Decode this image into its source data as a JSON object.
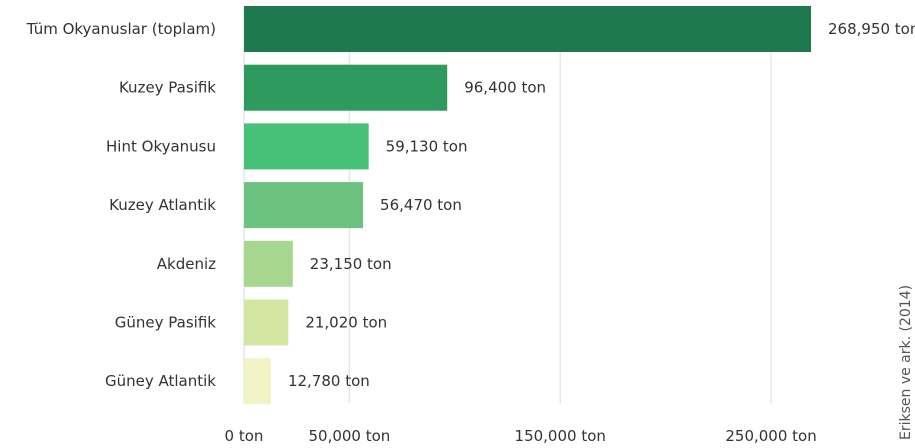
{
  "chart_data": {
    "type": "bar",
    "orientation": "horizontal",
    "categories": [
      "Tüm Okyanuslar (toplam)",
      "Kuzey Pasifik",
      "Hint Okyanusu",
      "Kuzey Atlantik",
      "Akdeniz",
      "Güney Pasifik",
      "Güney Atlantik"
    ],
    "values": [
      268950,
      96400,
      59130,
      56470,
      23150,
      21020,
      12780
    ],
    "value_labels": [
      "268,950 ton",
      "96,400 ton",
      "59,130 ton",
      "56,470 ton",
      "23,150 ton",
      "21,020 ton",
      "12,780 ton"
    ],
    "bar_colors": [
      "#1e7a4e",
      "#2f9a5e",
      "#45c178",
      "#6cc27f",
      "#a7d68f",
      "#d3e7a3",
      "#f3f3c8"
    ],
    "x_ticks": [
      {
        "value": 0,
        "label": "0 ton"
      },
      {
        "value": 50000,
        "label": "50,000 ton"
      },
      {
        "value": 150000,
        "label": "150,000 ton"
      },
      {
        "value": 250000,
        "label": "250,000 ton"
      }
    ],
    "xlim": [
      0,
      268950
    ],
    "grid": true,
    "title": "",
    "xlabel": "",
    "ylabel": ""
  },
  "source_note": "Eriksen ve ark. (2014)"
}
